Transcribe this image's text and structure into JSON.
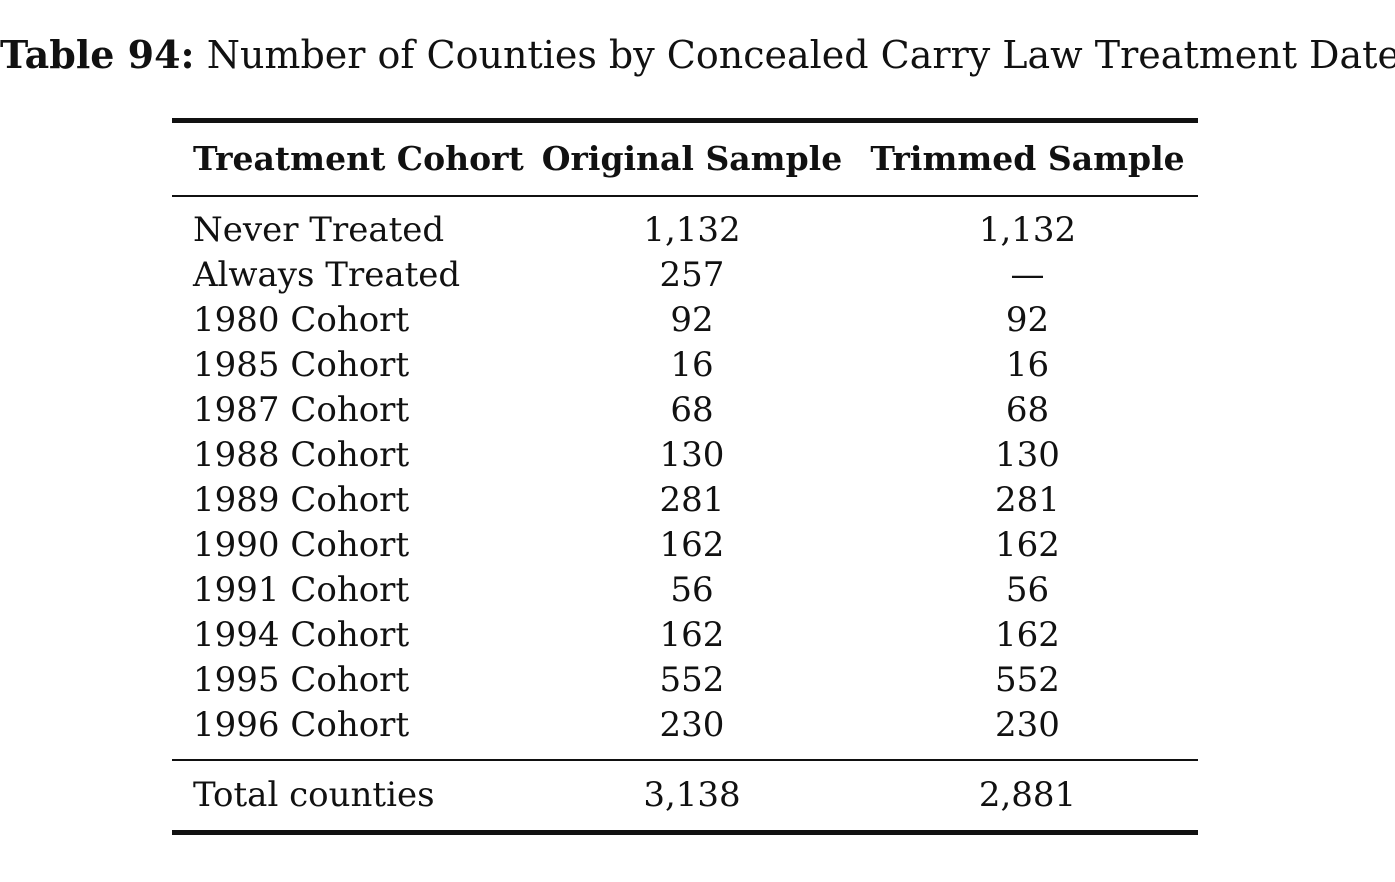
{
  "caption": {
    "label": "Table 94:",
    "text": "Number of Counties by Concealed Carry Law Treatment Date"
  },
  "table": {
    "headers": [
      "Treatment Cohort",
      "Original Sample",
      "Trimmed Sample"
    ],
    "rows": [
      [
        "Never Treated",
        "1,132",
        "1,132"
      ],
      [
        "Always Treated",
        "257",
        "—"
      ],
      [
        "1980 Cohort",
        "92",
        "92"
      ],
      [
        "1985 Cohort",
        "16",
        "16"
      ],
      [
        "1987 Cohort",
        "68",
        "68"
      ],
      [
        "1988 Cohort",
        "130",
        "130"
      ],
      [
        "1989 Cohort",
        "281",
        "281"
      ],
      [
        "1990 Cohort",
        "162",
        "162"
      ],
      [
        "1991 Cohort",
        "56",
        "56"
      ],
      [
        "1994 Cohort",
        "162",
        "162"
      ],
      [
        "1995 Cohort",
        "552",
        "552"
      ],
      [
        "1996 Cohort",
        "230",
        "230"
      ]
    ],
    "total": [
      "Total counties",
      "3,138",
      "2,881"
    ]
  }
}
